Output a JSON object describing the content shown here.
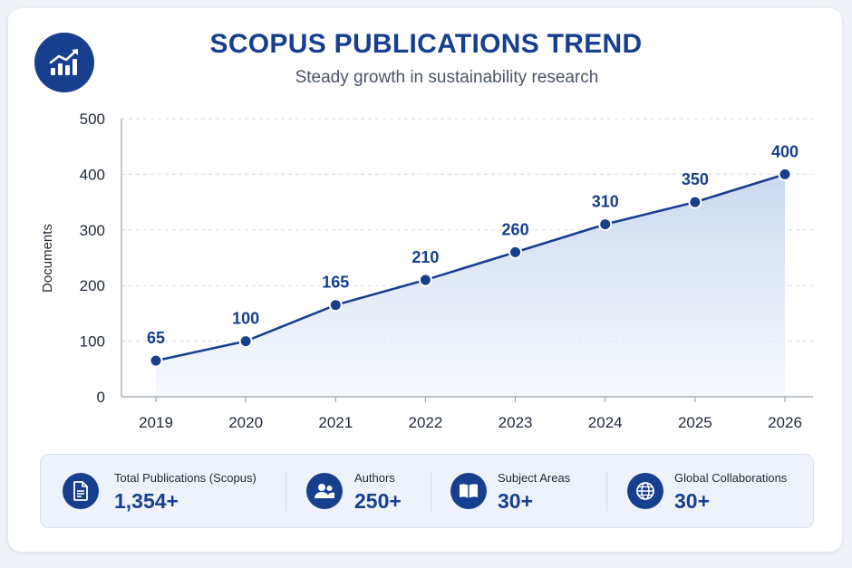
{
  "header": {
    "title": "SCOPUS PUBLICATIONS TREND",
    "subtitle": "Steady growth in sustainability research",
    "logo_icon": "trend-chart-icon"
  },
  "chart_data": {
    "type": "area",
    "x": [
      "2019",
      "2020",
      "2021",
      "2022",
      "2023",
      "2024",
      "2025",
      "2026"
    ],
    "values": [
      65,
      100,
      165,
      210,
      260,
      310,
      350,
      400
    ],
    "data_labels": [
      "65",
      "100",
      "165",
      "210",
      "260",
      "310",
      "350",
      "400"
    ],
    "ylabel": "Documents",
    "xlabel": "",
    "ylim": [
      0,
      500
    ],
    "yticks": [
      "0",
      "100",
      "200",
      "300",
      "400",
      "500"
    ],
    "grid": true,
    "line_color": "#173f8e",
    "fill_color": "#c9d8f0"
  },
  "stats": [
    {
      "icon": "document-icon",
      "label": "Total Publications (Scopus)",
      "value": "1,354+"
    },
    {
      "icon": "users-icon",
      "label": "Authors",
      "value": "250+"
    },
    {
      "icon": "book-icon",
      "label": "Subject Areas",
      "value": "30+"
    },
    {
      "icon": "globe-icon",
      "label": "Global Collaborations",
      "value": "30+"
    }
  ],
  "colors": {
    "accent": "#173f8e",
    "text": "#1f2937",
    "muted": "#4b5566"
  }
}
